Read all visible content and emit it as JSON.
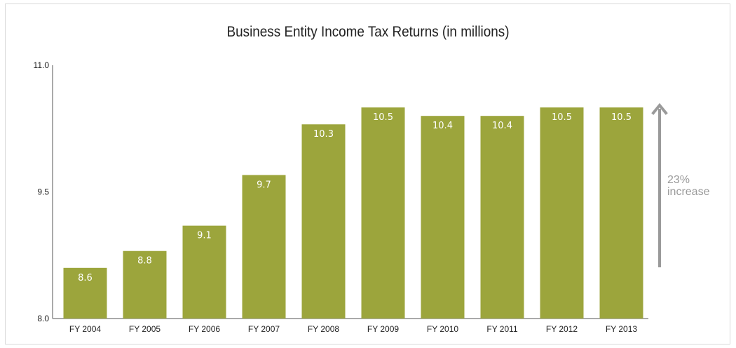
{
  "chart_data": {
    "type": "bar",
    "title": "Business Entity Income Tax Returns (in millions)",
    "categories": [
      "FY 2004",
      "FY 2005",
      "FY 2006",
      "FY 2007",
      "FY 2008",
      "FY 2009",
      "FY 2010",
      "FY 2011",
      "FY 2012",
      "FY 2013"
    ],
    "values": [
      8.6,
      8.8,
      9.1,
      9.7,
      10.3,
      10.5,
      10.4,
      10.4,
      10.5,
      10.5
    ],
    "value_labels": [
      "8.6",
      "8.8",
      "9.1",
      "9.7",
      "10.3",
      "10.5",
      "10.4",
      "10.4",
      "10.5",
      "10.5"
    ],
    "ylim": [
      8.0,
      11.0
    ],
    "y_ticks": [
      "8.0",
      "9.5",
      "11.0"
    ],
    "y_tick_values": [
      8.0,
      9.5,
      11.0
    ],
    "xlabel": "",
    "ylabel": "",
    "grid": false,
    "bar_color": "#9ca53c",
    "annotation": {
      "line1": "23%",
      "line2": "increase",
      "color": "#9a9a9a"
    }
  }
}
